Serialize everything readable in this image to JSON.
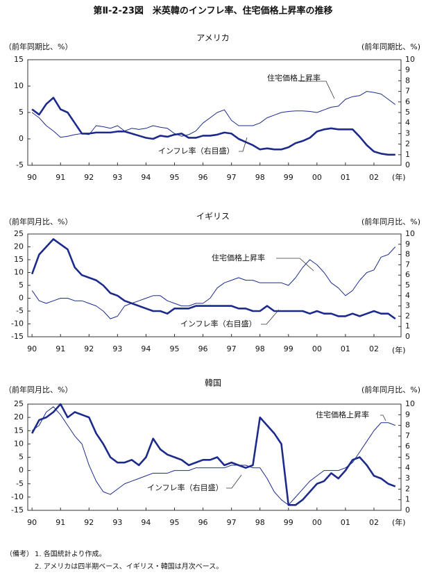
{
  "title": "第Ⅱ-2-23図　米英韓のインフレ率、住宅価格上昇率の推移",
  "notes": {
    "label": "（備考）",
    "items": [
      "1. 各国統計より作成。",
      "2. アメリカは四半期ベース、イギリス・韓国は月次ベース。"
    ]
  },
  "chart_data": [
    {
      "type": "line",
      "title": "アメリカ",
      "ylabel": "（前年同期比、%）",
      "y2label": "(前年同期比、%)",
      "xlabel": "(年)",
      "x": [
        1990,
        1990.25,
        1990.5,
        1990.75,
        1991,
        1991.25,
        1991.5,
        1991.75,
        1992,
        1992.25,
        1992.5,
        1992.75,
        1993,
        1993.25,
        1993.5,
        1993.75,
        1994,
        1994.25,
        1994.5,
        1994.75,
        1995,
        1995.25,
        1995.5,
        1995.75,
        1996,
        1996.25,
        1996.5,
        1996.75,
        1997,
        1997.25,
        1997.5,
        1997.75,
        1998,
        1998.25,
        1998.5,
        1998.75,
        1999,
        1999.25,
        1999.5,
        1999.75,
        2000,
        2000.25,
        2000.5,
        2000.75,
        2001,
        2001.25,
        2001.5,
        2001.75,
        2002,
        2002.25,
        2002.5,
        2002.75
      ],
      "xlim": [
        1989.85,
        2002.95
      ],
      "xticks": [
        {
          "value": 1990,
          "label": "90"
        },
        {
          "value": 1991,
          "label": "91"
        },
        {
          "value": 1992,
          "label": "92"
        },
        {
          "value": 1993,
          "label": "93"
        },
        {
          "value": 1994,
          "label": "94"
        },
        {
          "value": 1995,
          "label": "95"
        },
        {
          "value": 1996,
          "label": "96"
        },
        {
          "value": 1997,
          "label": "97"
        },
        {
          "value": 1998,
          "label": "98"
        },
        {
          "value": 1999,
          "label": "99"
        },
        {
          "value": 2000,
          "label": "00"
        },
        {
          "value": 2001,
          "label": "01"
        },
        {
          "value": 2002,
          "label": "02"
        }
      ],
      "ylim": [
        -5,
        15
      ],
      "yticks": [
        -5,
        0,
        5,
        10,
        15
      ],
      "y2lim": [
        0,
        10
      ],
      "y2ticks": [
        0,
        1,
        2,
        3,
        4,
        5,
        6,
        7,
        8,
        9,
        10
      ],
      "series": [
        {
          "name": "住宅価格上昇率",
          "color": "#1c2a8c",
          "line_width": 1,
          "values": [
            5.0,
            4.0,
            2.5,
            1.5,
            0.3,
            0.5,
            0.8,
            1.0,
            0.8,
            2.5,
            2.3,
            2.0,
            2.5,
            1.5,
            2.0,
            1.8,
            2.0,
            2.5,
            2.2,
            2.0,
            1.0,
            0.5,
            0.8,
            1.5,
            3.0,
            4.0,
            5.0,
            5.5,
            3.5,
            2.5,
            2.5,
            2.5,
            3.0,
            4.0,
            4.5,
            5.0,
            5.2,
            5.3,
            5.3,
            5.2,
            5.0,
            5.5,
            6.0,
            6.2,
            7.5,
            8.0,
            8.2,
            9.0,
            8.8,
            8.5,
            7.5,
            6.5
          ]
        },
        {
          "name": "インフレ率（右目盛）",
          "color": "#1c2a8c",
          "line_width": 2.6,
          "axis": "y2",
          "values": [
            5.3,
            4.8,
            5.8,
            6.4,
            5.3,
            5.0,
            4.0,
            3.0,
            3.0,
            3.1,
            3.1,
            3.1,
            3.2,
            3.2,
            3.0,
            2.8,
            2.6,
            2.5,
            2.8,
            2.7,
            2.9,
            3.0,
            2.6,
            2.6,
            2.8,
            2.8,
            2.9,
            3.1,
            3.0,
            2.5,
            2.2,
            1.9,
            1.5,
            1.6,
            1.5,
            1.5,
            1.7,
            2.1,
            2.3,
            2.6,
            3.2,
            3.4,
            3.5,
            3.4,
            3.4,
            3.4,
            2.7,
            1.9,
            1.3,
            1.1,
            1.0,
            1.0
          ]
        }
      ]
    },
    {
      "type": "line",
      "title": "イギリス",
      "ylabel": "（前年同月比、%）",
      "y2label": "(前年同月比、%)",
      "xlabel": "(年)",
      "x": [
        1990,
        1990.25,
        1990.5,
        1990.75,
        1991,
        1991.25,
        1991.5,
        1991.75,
        1992,
        1992.25,
        1992.5,
        1992.75,
        1993,
        1993.25,
        1993.5,
        1993.75,
        1994,
        1994.25,
        1994.5,
        1994.75,
        1995,
        1995.25,
        1995.5,
        1995.75,
        1996,
        1996.25,
        1996.5,
        1996.75,
        1997,
        1997.25,
        1997.5,
        1997.75,
        1998,
        1998.25,
        1998.5,
        1998.75,
        1999,
        1999.25,
        1999.5,
        1999.75,
        2000,
        2000.25,
        2000.5,
        2000.75,
        2001,
        2001.25,
        2001.5,
        2001.75,
        2002,
        2002.25,
        2002.5,
        2002.75
      ],
      "xlim": [
        1989.85,
        2002.95
      ],
      "xticks": [
        {
          "value": 1990,
          "label": "90"
        },
        {
          "value": 1991,
          "label": "91"
        },
        {
          "value": 1992,
          "label": "92"
        },
        {
          "value": 1993,
          "label": "93"
        },
        {
          "value": 1994,
          "label": "94"
        },
        {
          "value": 1995,
          "label": "95"
        },
        {
          "value": 1996,
          "label": "96"
        },
        {
          "value": 1997,
          "label": "97"
        },
        {
          "value": 1998,
          "label": "98"
        },
        {
          "value": 1999,
          "label": "99"
        },
        {
          "value": 2000,
          "label": "00"
        },
        {
          "value": 2001,
          "label": "01"
        },
        {
          "value": 2002,
          "label": "02"
        }
      ],
      "ylim": [
        -15,
        25
      ],
      "yticks": [
        -15,
        -10,
        -5,
        0,
        5,
        10,
        15,
        20,
        25
      ],
      "y2lim": [
        0,
        10
      ],
      "y2ticks": [
        0,
        1,
        2,
        3,
        4,
        5,
        6,
        7,
        8,
        9,
        10
      ],
      "series": [
        {
          "name": "住宅価格上昇率",
          "color": "#1c2a8c",
          "line_width": 1,
          "values": [
            3,
            -1,
            -2,
            -1,
            0,
            0,
            -1,
            -1,
            -2,
            -3,
            -5,
            -8,
            -7,
            -3,
            -2,
            -1,
            0,
            1,
            1,
            -1,
            -2,
            -3,
            -3,
            -2,
            -2,
            0,
            4,
            6,
            7,
            8,
            7,
            7,
            6,
            6,
            6,
            6,
            5,
            8,
            12,
            15,
            13,
            10,
            6,
            4,
            1,
            3,
            7,
            10,
            11,
            16,
            17,
            20
          ]
        },
        {
          "name": "インフレ率（右目盛）",
          "color": "#1c2a8c",
          "line_width": 2.6,
          "axis": "y2",
          "values": [
            6.1,
            8.0,
            8.75,
            9.5,
            9.0,
            8.5,
            6.75,
            6.0,
            5.75,
            5.5,
            5.0,
            4.25,
            4.0,
            3.5,
            3.25,
            3.0,
            2.75,
            2.5,
            2.5,
            2.25,
            2.75,
            2.75,
            2.75,
            3.0,
            3.0,
            3.0,
            3.0,
            3.0,
            3.0,
            2.75,
            2.75,
            2.5,
            2.5,
            3.0,
            2.5,
            2.5,
            2.5,
            2.5,
            2.5,
            2.25,
            2.5,
            2.25,
            2.25,
            2.0,
            2.0,
            2.25,
            2.0,
            2.25,
            2.5,
            2.25,
            2.25,
            1.75
          ]
        }
      ]
    },
    {
      "type": "line",
      "title": "韓国",
      "ylabel": "（前年同月比、%）",
      "y2label": "(前年同月比、%)",
      "xlabel": "(年)",
      "x": [
        1990,
        1990.25,
        1990.5,
        1990.75,
        1991,
        1991.25,
        1991.5,
        1991.75,
        1992,
        1992.25,
        1992.5,
        1992.75,
        1993,
        1993.25,
        1993.5,
        1993.75,
        1994,
        1994.25,
        1994.5,
        1994.75,
        1995,
        1995.25,
        1995.5,
        1995.75,
        1996,
        1996.25,
        1996.5,
        1996.75,
        1997,
        1997.25,
        1997.5,
        1997.75,
        1998,
        1998.25,
        1998.5,
        1998.75,
        1999,
        1999.25,
        1999.5,
        1999.75,
        2000,
        2000.25,
        2000.5,
        2000.75,
        2001,
        2001.25,
        2001.5,
        2001.75,
        2002,
        2002.25,
        2002.5,
        2002.75
      ],
      "xlim": [
        1989.85,
        2002.95
      ],
      "xticks": [
        {
          "value": 1990,
          "label": "90"
        },
        {
          "value": 1991,
          "label": "91"
        },
        {
          "value": 1992,
          "label": "92"
        },
        {
          "value": 1993,
          "label": "93"
        },
        {
          "value": 1994,
          "label": "94"
        },
        {
          "value": 1995,
          "label": "95"
        },
        {
          "value": 1996,
          "label": "96"
        },
        {
          "value": 1997,
          "label": "97"
        },
        {
          "value": 1998,
          "label": "98"
        },
        {
          "value": 1999,
          "label": "99"
        },
        {
          "value": 2000,
          "label": "00"
        },
        {
          "value": 2001,
          "label": "01"
        },
        {
          "value": 2002,
          "label": "02"
        }
      ],
      "ylim": [
        -15,
        25
      ],
      "yticks": [
        -15,
        -10,
        -5,
        0,
        5,
        10,
        15,
        20,
        25
      ],
      "y2lim": [
        0,
        10
      ],
      "y2ticks": [
        0,
        1,
        2,
        3,
        4,
        5,
        6,
        7,
        8,
        9,
        10
      ],
      "series": [
        {
          "name": "住宅価格上昇率",
          "color": "#1c2a8c",
          "line_width": 1,
          "values": [
            15,
            17,
            22,
            24,
            21,
            17,
            13,
            10,
            2,
            -4,
            -8,
            -9,
            -7,
            -5,
            -4,
            -3,
            -2,
            -1,
            -1,
            -1,
            0,
            0,
            0,
            1,
            1,
            1,
            1,
            1,
            2,
            2,
            2,
            1,
            1,
            -3,
            -8,
            -11,
            -13,
            -10,
            -7,
            -4,
            -2,
            0,
            0,
            0,
            1,
            3,
            7,
            11,
            15,
            18,
            18,
            17
          ]
        },
        {
          "name": "インフレ率（右目盛）",
          "color": "#1c2a8c",
          "line_width": 2.6,
          "axis": "y2",
          "values": [
            7.25,
            8.5,
            8.75,
            9.25,
            10.0,
            8.75,
            9.25,
            9.0,
            8.75,
            7.25,
            6.25,
            5.0,
            4.5,
            4.5,
            4.75,
            4.25,
            5.0,
            6.75,
            5.75,
            5.25,
            5.0,
            4.75,
            4.25,
            4.5,
            4.75,
            4.75,
            5.0,
            4.25,
            4.5,
            4.25,
            4.0,
            4.25,
            8.75,
            8.0,
            7.25,
            6.25,
            0.5,
            0.5,
            1.0,
            1.75,
            2.5,
            2.75,
            3.5,
            3.0,
            3.75,
            4.75,
            5.0,
            4.25,
            3.25,
            3.0,
            2.5,
            2.25
          ]
        }
      ]
    }
  ]
}
